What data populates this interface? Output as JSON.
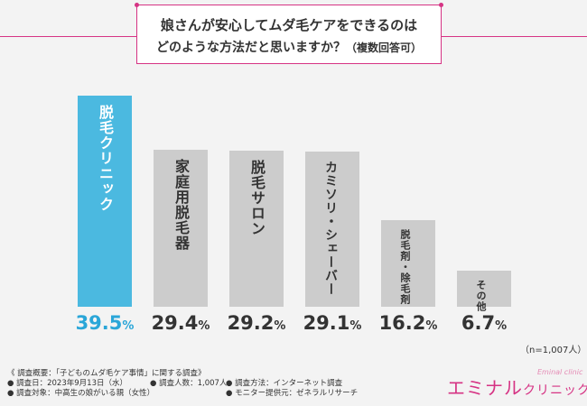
{
  "title": {
    "line1": "娘さんが安心してムダ毛ケアをできるのは",
    "line2": "どのような方法だと思いますか？",
    "note": "（複数回答可）"
  },
  "chart_data": {
    "type": "bar",
    "title": "娘さんが安心してムダ毛ケアをできるのはどのような方法だと思いますか？（複数回答可）",
    "categories": [
      "脱毛クリニック",
      "家庭用脱毛器",
      "脱毛サロン",
      "カミソリ・シェーバー",
      "脱毛剤・除毛剤",
      "その他"
    ],
    "values": [
      39.5,
      29.4,
      29.2,
      29.1,
      16.2,
      6.7
    ],
    "value_labels": [
      "39.5%",
      "29.4%",
      "29.2%",
      "29.1%",
      "16.2%",
      "6.7%"
    ],
    "highlight_index": 0,
    "ylim": [
      0,
      40
    ],
    "xlabel": "",
    "ylabel": ""
  },
  "colors": {
    "highlight": "#4bb9e0",
    "bar": "#cccccc",
    "accent": "#d63384",
    "pct_highlight": "#2aa6d8"
  },
  "sample_note": "（n=1,007人）",
  "footer": {
    "heading": "《 調査概要：「子どものムダ毛ケア事情」に関する調査》",
    "date": "● 調査日：2023年9月13日（水）",
    "count": "● 調査人数：1,007人",
    "method": "● 調査方法：インターネット調査",
    "target": "● 調査対象：中高生の娘がいる親（女性）",
    "provider": "● モニター提供元：ゼネラルリサーチ"
  },
  "logo": {
    "main": "エミナル",
    "sub": "クリニック",
    "small": "Eminal clinic"
  }
}
